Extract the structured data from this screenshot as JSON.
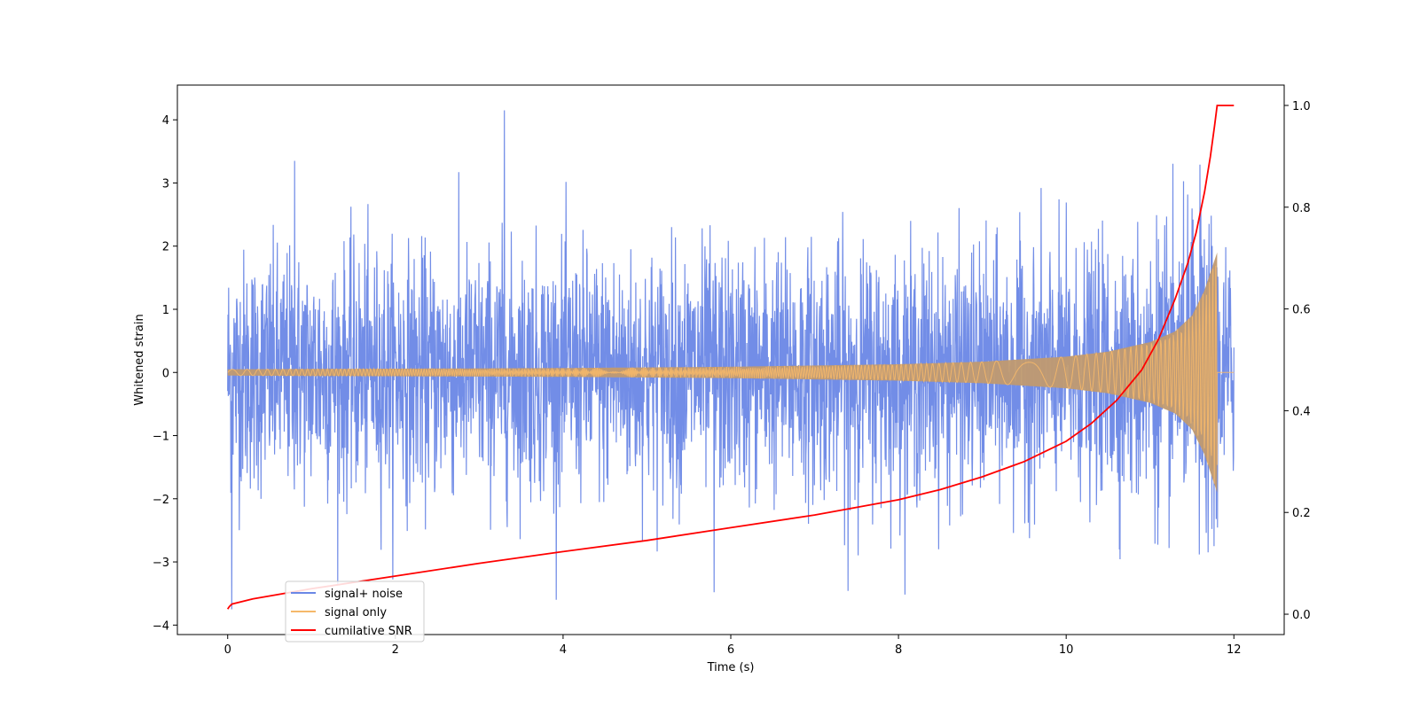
{
  "chart_data": {
    "type": "line",
    "title": "",
    "xlabel": "Time (s)",
    "ylabel": "Whitened strain",
    "y2label": "",
    "xlim": [
      -0.6,
      12.6
    ],
    "ylim": [
      -4.15,
      4.55
    ],
    "y2lim": [
      -0.04,
      1.04
    ],
    "xticks": [
      0,
      2,
      4,
      6,
      8,
      10,
      12
    ],
    "xtick_labels": [
      "0",
      "2",
      "4",
      "6",
      "8",
      "10",
      "12"
    ],
    "yticks": [
      4,
      3,
      2,
      1,
      0,
      -1,
      -2,
      -3,
      -4
    ],
    "ytick_labels": [
      "4",
      "3",
      "2",
      "1",
      "0",
      "−1",
      "−2",
      "−3",
      "−4"
    ],
    "y2ticks": [
      1.0,
      0.8,
      0.6,
      0.4,
      0.2,
      0.0
    ],
    "y2tick_labels": [
      "1.0",
      "0.8",
      "0.6",
      "0.4",
      "0.2",
      "0.0"
    ],
    "grid": false,
    "legend_position": "lower-left",
    "series": [
      {
        "name": "signal+ noise",
        "axis": "left",
        "color": "#6a87e6",
        "noise_std": 0.95,
        "peak_max": 4.15,
        "peak_min": -3.75,
        "x_range": [
          0,
          12
        ]
      },
      {
        "name": "signal only",
        "axis": "left",
        "color": "#f5b86a",
        "fill_color": "#c09a70",
        "chirp_envelope": {
          "t": [
            0,
            2,
            4,
            6,
            8,
            9,
            10,
            10.5,
            11,
            11.3,
            11.5,
            11.65,
            11.75,
            11.8
          ],
          "amp": [
            0.05,
            0.06,
            0.07,
            0.09,
            0.13,
            0.17,
            0.25,
            0.33,
            0.48,
            0.65,
            0.9,
            1.3,
            1.7,
            1.9
          ]
        },
        "x_range": [
          0,
          12
        ]
      },
      {
        "name": "cumilative SNR",
        "axis": "right",
        "color": "#ff0000",
        "x": [
          0,
          0.02,
          0.05,
          0.3,
          1,
          2,
          3,
          4,
          5,
          6,
          7,
          8,
          8.5,
          9,
          9.5,
          10,
          10.3,
          10.6,
          10.9,
          11.1,
          11.3,
          11.45,
          11.55,
          11.65,
          11.72,
          11.77,
          11.8,
          12.0
        ],
        "y": [
          0.01,
          0.015,
          0.02,
          0.03,
          0.05,
          0.075,
          0.1,
          0.123,
          0.145,
          0.17,
          0.195,
          0.225,
          0.245,
          0.27,
          0.3,
          0.34,
          0.375,
          0.42,
          0.48,
          0.54,
          0.62,
          0.69,
          0.75,
          0.83,
          0.9,
          0.96,
          1.0,
          1.0
        ]
      }
    ]
  }
}
